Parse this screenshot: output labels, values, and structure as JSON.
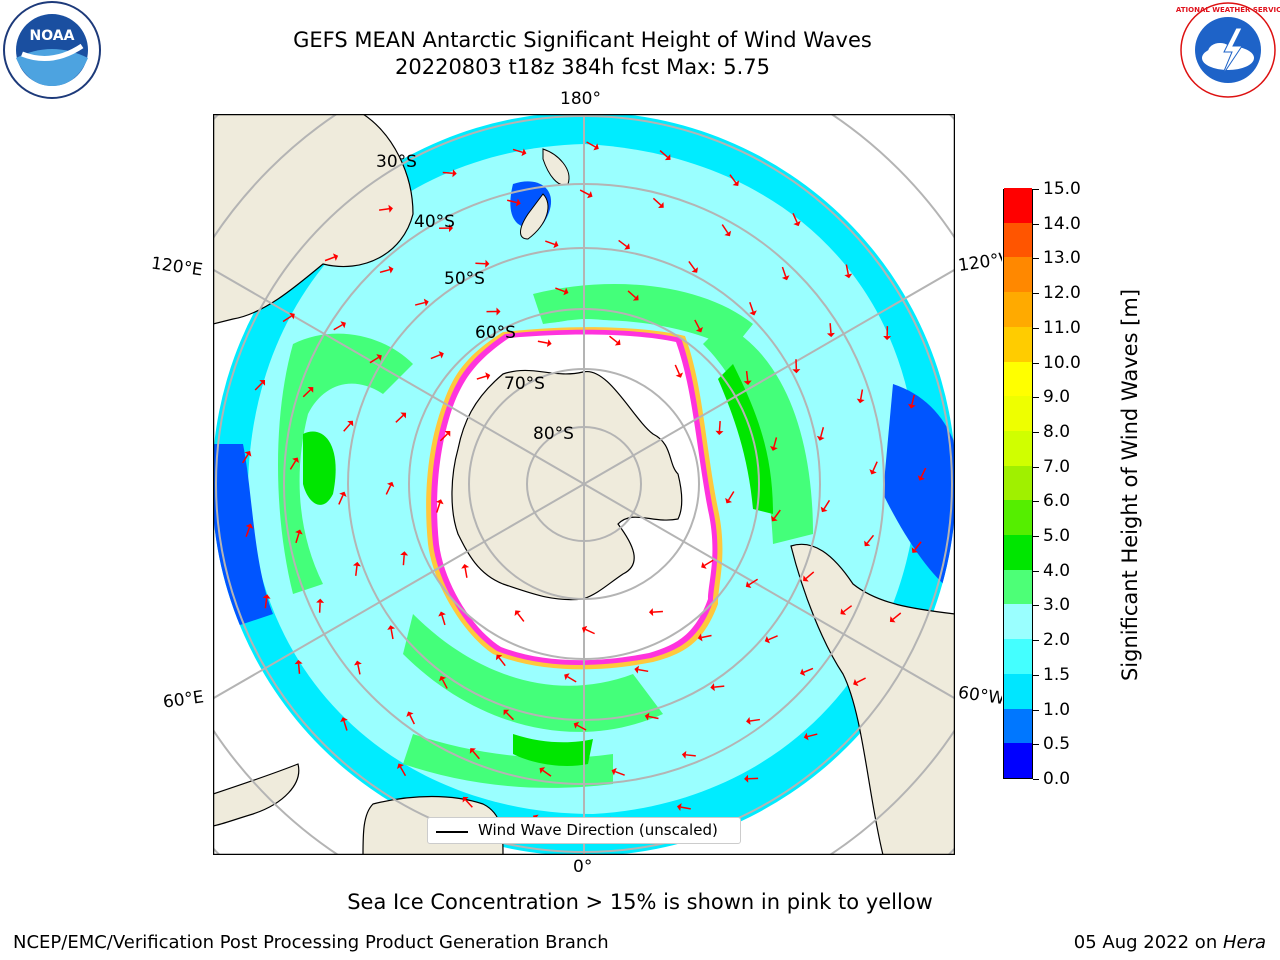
{
  "title": {
    "line1": "GEFS MEAN Antarctic Significant Height of Wind Waves",
    "line2": "20220803 t18z 384h fcst   Max: 5.75"
  },
  "map": {
    "projection": "south-polar-stereographic",
    "latitude_labels": [
      "30°S",
      "40°S",
      "50°S",
      "60°S",
      "70°S",
      "80°S"
    ],
    "longitude_labels": {
      "top": "180°",
      "bottom": "0°",
      "upper_left": "120°E",
      "lower_left": "60°E",
      "upper_right": "120°W",
      "lower_right": "60°W"
    },
    "legend": {
      "line_label": "Wind Wave Direction (unscaled)"
    },
    "colors": {
      "land": "#efebdc",
      "ice_edge": "#ff33dd",
      "ice_fringe": "#ffc83c",
      "arrow": "#ff0000",
      "grid": "#b4b4b4",
      "ocean_mid": "#9affff"
    }
  },
  "colorbar": {
    "title": "Significant Height of Wind Waves [m]",
    "ticks": [
      "15.0",
      "14.0",
      "13.0",
      "12.0",
      "11.0",
      "10.0",
      "9.0",
      "8.0",
      "7.0",
      "6.0",
      "5.0",
      "4.0",
      "3.0",
      "2.0",
      "1.5",
      "1.0",
      "0.5",
      "0.0"
    ],
    "colors_bottom_to_top": [
      "#0000ff",
      "#0077ff",
      "#00e6ff",
      "#44ffff",
      "#9affff",
      "#4dff77",
      "#00e600",
      "#55ee00",
      "#a0f000",
      "#d0ff00",
      "#eeff00",
      "#ffff00",
      "#ffcc00",
      "#ffaa00",
      "#ff8800",
      "#ff5500",
      "#ff0000"
    ]
  },
  "caption": "Sea Ice Concentration > 15% is shown in pink to yellow",
  "footer": {
    "left": "NCEP/EMC/Verification Post Processing Product Generation Branch",
    "right_date": "05 Aug 2022 on ",
    "right_host": "Hera"
  },
  "logos": {
    "left_text": "NOAA",
    "right_text": "NATIONAL WEATHER SERVICE"
  }
}
